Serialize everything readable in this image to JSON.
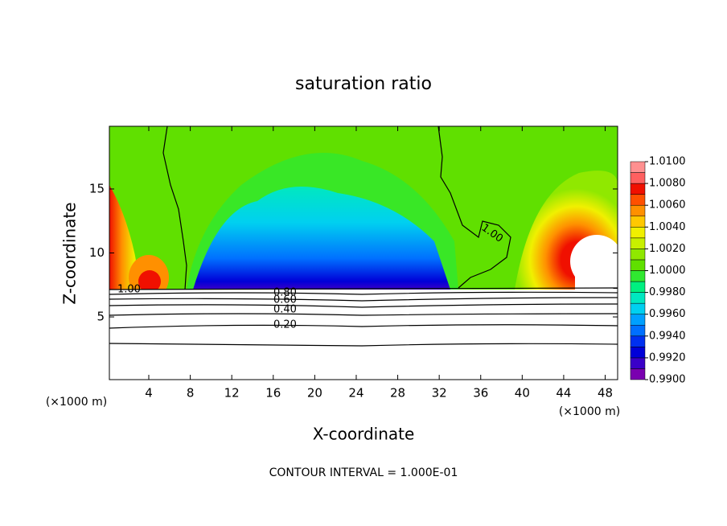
{
  "chart_data": {
    "type": "contour",
    "title": "saturation ratio",
    "x_label": "X-coordinate",
    "y_label": "Z-coordinate",
    "x_unit": "(×1000 m)",
    "x_unit_right": "(×1000 m)",
    "footer": "CONTOUR INTERVAL = 1.000E-01",
    "xlim": [
      0.2,
      49.2
    ],
    "ylim": [
      0.1,
      19.9
    ],
    "xticks": [
      4,
      8,
      12,
      16,
      20,
      24,
      28,
      32,
      36,
      40,
      44,
      48
    ],
    "yticks": [
      5,
      10,
      15
    ],
    "contour_labels": [
      "1.00",
      "0.80",
      "0.60",
      "0.40",
      "0.20",
      "1.00"
    ],
    "colorbar": {
      "levels": [
        0.99,
        0.991,
        0.992,
        0.993,
        0.994,
        0.995,
        0.996,
        0.997,
        0.998,
        0.999,
        1.0,
        1.001,
        1.002,
        1.003,
        1.004,
        1.005,
        1.006,
        1.007,
        1.008,
        1.009,
        1.01
      ],
      "colors": [
        "#7a00b0",
        "#3a00c8",
        "#0000d8",
        "#0030f0",
        "#0070ff",
        "#00a0ff",
        "#00d0f0",
        "#00e8c0",
        "#00f080",
        "#30e830",
        "#60e000",
        "#90e800",
        "#c8f000",
        "#f0f000",
        "#ffc800",
        "#ff9000",
        "#ff5000",
        "#f01000",
        "#ff6060",
        "#ff9090"
      ],
      "ticks": [
        {
          "value": 0.99,
          "label": "0.9900"
        },
        {
          "value": 0.992,
          "label": "0.9920"
        },
        {
          "value": 0.994,
          "label": "0.9940"
        },
        {
          "value": 0.996,
          "label": "0.9960"
        },
        {
          "value": 0.998,
          "label": "0.9980"
        },
        {
          "value": 1.0,
          "label": "1.0000"
        },
        {
          "value": 1.002,
          "label": "1.0020"
        },
        {
          "value": 1.004,
          "label": "1.0040"
        },
        {
          "value": 1.006,
          "label": "1.0060"
        },
        {
          "value": 1.008,
          "label": "1.0080"
        },
        {
          "value": 1.01,
          "label": "1.0100"
        }
      ]
    }
  }
}
